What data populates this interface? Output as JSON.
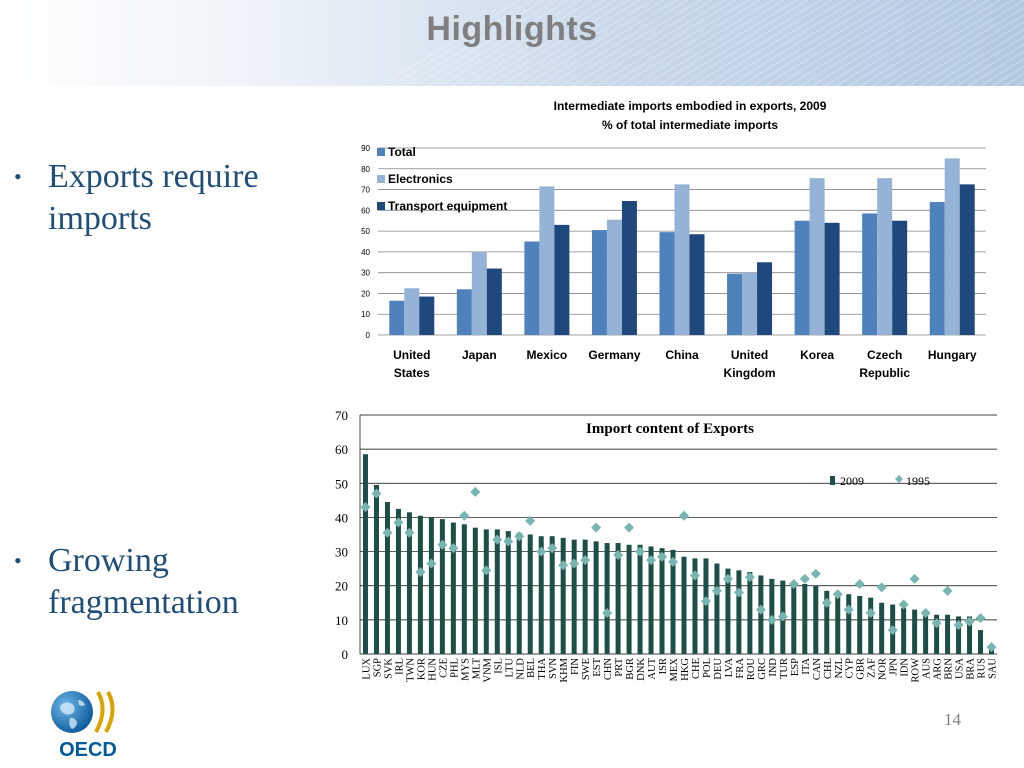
{
  "slide": {
    "title": "Highlights",
    "page_number": "14",
    "logo_text": "OECD",
    "bullets": [
      "Exports require imports",
      "Growing fragmentation"
    ]
  },
  "chart_data": [
    {
      "type": "bar",
      "title": "Intermediate imports embodied in exports, 2009",
      "subtitle": "% of total intermediate imports",
      "categories": [
        [
          "United",
          "States"
        ],
        [
          "Japan"
        ],
        [
          "Mexico"
        ],
        [
          "Germany"
        ],
        [
          "China"
        ],
        [
          "United",
          "Kingdom"
        ],
        [
          "Korea"
        ],
        [
          "Czech",
          "Republic"
        ],
        [
          "Hungary"
        ]
      ],
      "series": [
        {
          "name": "Total",
          "color": "#4f81bd",
          "values": [
            16.5,
            22,
            45,
            50.5,
            49.5,
            29.5,
            55,
            58.5,
            64
          ]
        },
        {
          "name": "Electronics",
          "color": "#95b3d7",
          "values": [
            22.5,
            40,
            71.5,
            55.5,
            72.5,
            30,
            75.5,
            75.5,
            85
          ]
        },
        {
          "name": "Transport equipment",
          "color": "#1f497d",
          "values": [
            18.5,
            32,
            53,
            64.5,
            48.5,
            35,
            54,
            55,
            72.5
          ]
        }
      ],
      "ylim": [
        0,
        90
      ],
      "yticks": [
        0,
        10,
        20,
        30,
        40,
        50,
        60,
        70,
        80,
        90
      ],
      "grid": true,
      "legend": "top-left"
    },
    {
      "type": "bar",
      "title": "Import content of Exports",
      "categories": [
        "LUX",
        "SGP",
        "SVK",
        "IRL",
        "TWN",
        "KOR",
        "HUN",
        "CZE",
        "PHL",
        "MYS",
        "MLT",
        "VNM",
        "ISL",
        "LTU",
        "NLD",
        "BEL",
        "THA",
        "SVN",
        "KHM",
        "FIN",
        "SWE",
        "EST",
        "CHN",
        "PRT",
        "BGR",
        "DNK",
        "AUT",
        "ISR",
        "MEX",
        "HKG",
        "CHE",
        "POL",
        "DEU",
        "LVA",
        "FRA",
        "ROU",
        "GRC",
        "IND",
        "TUR",
        "ESP",
        "ITA",
        "CAN",
        "CHL",
        "NZL",
        "CYP",
        "GBR",
        "ZAF",
        "NOR",
        "JPN",
        "IDN",
        "ROW",
        "AUS",
        "ARG",
        "BRN",
        "USA",
        "BRA",
        "RUS",
        "SAU"
      ],
      "series": [
        {
          "name": "2009",
          "color": "#1c4f47",
          "mark": "bar",
          "values": [
            58.5,
            49.5,
            44.5,
            42.5,
            41.5,
            40.5,
            40,
            39.5,
            38.5,
            38,
            37,
            36.5,
            36.5,
            36,
            35.5,
            35,
            34.5,
            34.5,
            34,
            33.5,
            33.5,
            33,
            32.5,
            32.5,
            32,
            32,
            31.5,
            31,
            30.5,
            28.5,
            28,
            28,
            26.5,
            25,
            24.5,
            24,
            23,
            22,
            21.5,
            21,
            20.5,
            20,
            18.5,
            18,
            17.5,
            17,
            16.5,
            15,
            14.5,
            13.5,
            13,
            12,
            11.5,
            11.5,
            11,
            11,
            7,
            1.5
          ]
        },
        {
          "name": "1995",
          "color": "#76b5b0",
          "mark": "diamond",
          "values": [
            43,
            47,
            35.5,
            38.5,
            35.5,
            24,
            26.5,
            32,
            31,
            40.5,
            47.5,
            24.5,
            33.5,
            33,
            34.5,
            39,
            30,
            31,
            26,
            26.5,
            27.5,
            37,
            12,
            29,
            37,
            30,
            27.5,
            28.5,
            27,
            40.5,
            23,
            15.5,
            18.5,
            22,
            18,
            22.5,
            13,
            10,
            11,
            20.5,
            22,
            23.5,
            15,
            17.5,
            13,
            20.5,
            12,
            19.5,
            7,
            14.5,
            22,
            12,
            9,
            18.5,
            8.5,
            9.5,
            10.5,
            2
          ]
        }
      ],
      "ylim": [
        0,
        70
      ],
      "yticks": [
        0,
        10,
        20,
        30,
        40,
        50,
        60,
        70
      ],
      "grid": true,
      "legend": "top-right"
    }
  ]
}
